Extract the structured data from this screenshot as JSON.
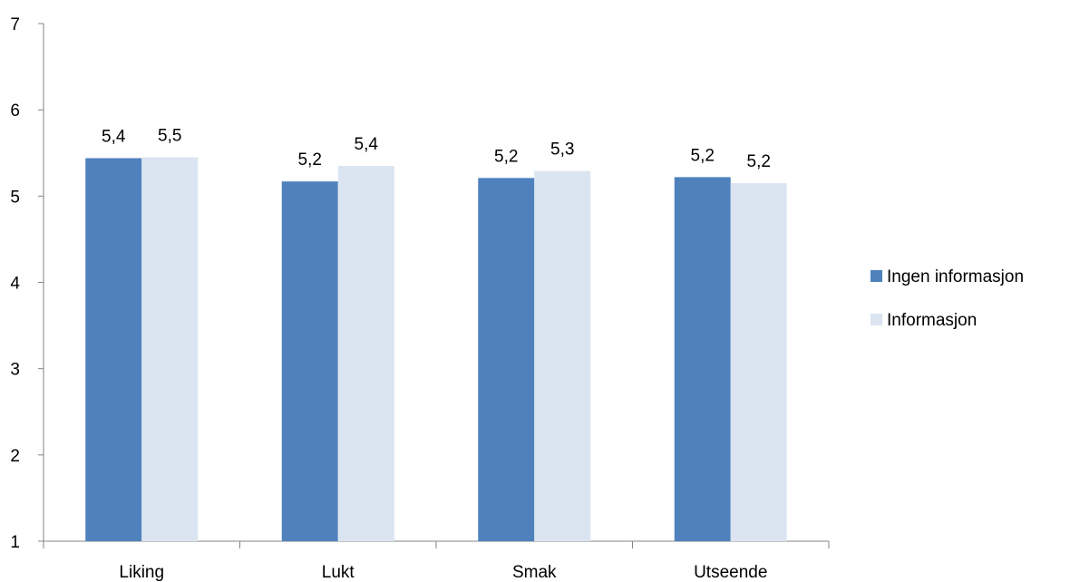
{
  "chart_data": {
    "type": "bar",
    "categories": [
      "Liking",
      "Lukt",
      "Smak",
      "Utseende"
    ],
    "series": [
      {
        "name": "Ingen informasjon",
        "color": "#4f81bd",
        "values": [
          5.44,
          5.17,
          5.21,
          5.22
        ],
        "labels": [
          "5,4",
          "5,2",
          "5,2",
          "5,2"
        ]
      },
      {
        "name": "Informasjon",
        "color": "#dbe5f1",
        "values": [
          5.45,
          5.35,
          5.29,
          5.15
        ],
        "labels": [
          "5,5",
          "5,4",
          "5,3",
          "5,2"
        ]
      }
    ],
    "ylim": [
      1,
      7
    ],
    "yticks": [
      "1",
      "2",
      "3",
      "4",
      "5",
      "6",
      "7"
    ],
    "legend_position": "right",
    "grid": false,
    "xlabel": "",
    "ylabel": "",
    "title": ""
  }
}
